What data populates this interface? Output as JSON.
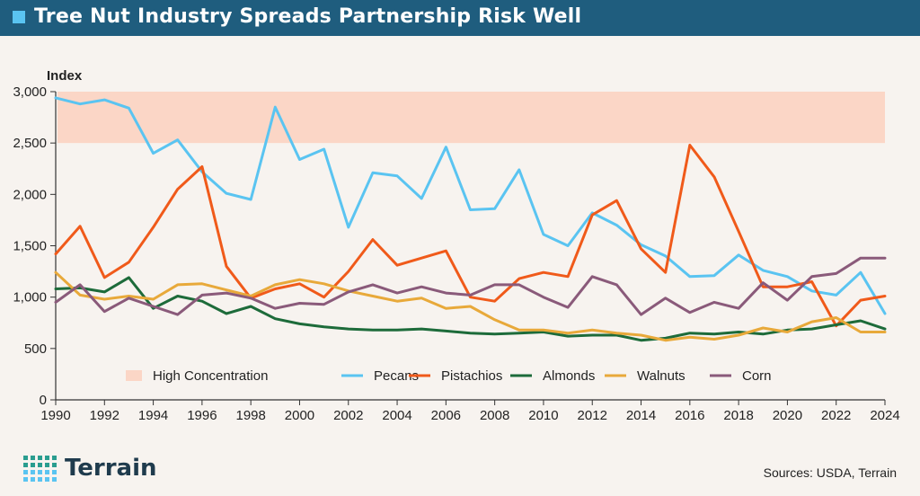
{
  "header": {
    "title": "Tree Nut Industry Spreads Partnership Risk Well"
  },
  "footer": {
    "logo_text": "Terrain",
    "sources": "Sources: USDA, Terrain"
  },
  "colors": {
    "title_bg": "#1f5d7e",
    "title_marker": "#5ac4f1",
    "band": "#fbd6c6",
    "Pecans": "#5ac4f1",
    "Pistachios": "#f05a1a",
    "Almonds": "#1d6b3a",
    "Walnuts": "#e8a93a",
    "Corn": "#8a5a7a"
  },
  "chart_data": {
    "type": "line",
    "ylabel": "Index",
    "ylim": [
      0,
      3000
    ],
    "yticks": [
      0,
      500,
      1000,
      1500,
      2000,
      2500,
      3000
    ],
    "ytick_labels": [
      "0",
      "500",
      "1,000",
      "1,500",
      "2,000",
      "2,500",
      "3,000"
    ],
    "xlim": [
      1990,
      2024
    ],
    "xticks": [
      1990,
      1992,
      1994,
      1996,
      1998,
      2000,
      2002,
      2004,
      2006,
      2008,
      2010,
      2012,
      2014,
      2016,
      2018,
      2020,
      2022,
      2024
    ],
    "grid": false,
    "legend_position": "bottom",
    "band": {
      "name": "High Concentration",
      "from": 2500,
      "to": 3000
    },
    "x": [
      1990,
      1991,
      1992,
      1993,
      1994,
      1995,
      1996,
      1997,
      1998,
      1999,
      2000,
      2001,
      2002,
      2003,
      2004,
      2005,
      2006,
      2007,
      2008,
      2009,
      2010,
      2011,
      2012,
      2013,
      2014,
      2015,
      2016,
      2017,
      2018,
      2019,
      2020,
      2021,
      2022,
      2023,
      2024
    ],
    "series": [
      {
        "name": "Pecans",
        "values": [
          2940,
          2880,
          2920,
          2840,
          2400,
          2530,
          2220,
          2010,
          1950,
          2850,
          2340,
          2440,
          1680,
          2210,
          2180,
          1960,
          2460,
          1850,
          1860,
          2240,
          1610,
          1500,
          1820,
          1700,
          1510,
          1400,
          1200,
          1210,
          1410,
          1260,
          1200,
          1060,
          1020,
          1240,
          840
        ]
      },
      {
        "name": "Pistachios",
        "values": [
          1420,
          1690,
          1190,
          1340,
          1680,
          2050,
          2270,
          1300,
          990,
          1080,
          1130,
          1000,
          1250,
          1560,
          1310,
          1380,
          1450,
          1000,
          960,
          1180,
          1240,
          1200,
          1800,
          1940,
          1470,
          1240,
          2480,
          2170,
          1640,
          1100,
          1100,
          1150,
          720,
          970,
          1010
        ]
      },
      {
        "name": "Almonds",
        "values": [
          1080,
          1090,
          1050,
          1190,
          890,
          1010,
          960,
          840,
          910,
          790,
          740,
          710,
          690,
          680,
          680,
          690,
          670,
          650,
          640,
          650,
          660,
          620,
          630,
          630,
          580,
          600,
          650,
          640,
          660,
          640,
          680,
          690,
          730,
          770,
          690
        ]
      },
      {
        "name": "Walnuts",
        "values": [
          1240,
          1020,
          980,
          1010,
          980,
          1120,
          1130,
          1070,
          1010,
          1120,
          1170,
          1130,
          1060,
          1010,
          960,
          990,
          890,
          910,
          780,
          680,
          680,
          650,
          680,
          650,
          630,
          580,
          610,
          590,
          630,
          700,
          660,
          760,
          800,
          660,
          660
        ]
      },
      {
        "name": "Corn",
        "values": [
          950,
          1120,
          860,
          990,
          910,
          830,
          1020,
          1040,
          990,
          890,
          940,
          930,
          1050,
          1120,
          1040,
          1100,
          1040,
          1020,
          1120,
          1120,
          1000,
          900,
          1200,
          1120,
          830,
          990,
          850,
          950,
          890,
          1140,
          970,
          1200,
          1230,
          1380,
          1380
        ]
      }
    ]
  }
}
